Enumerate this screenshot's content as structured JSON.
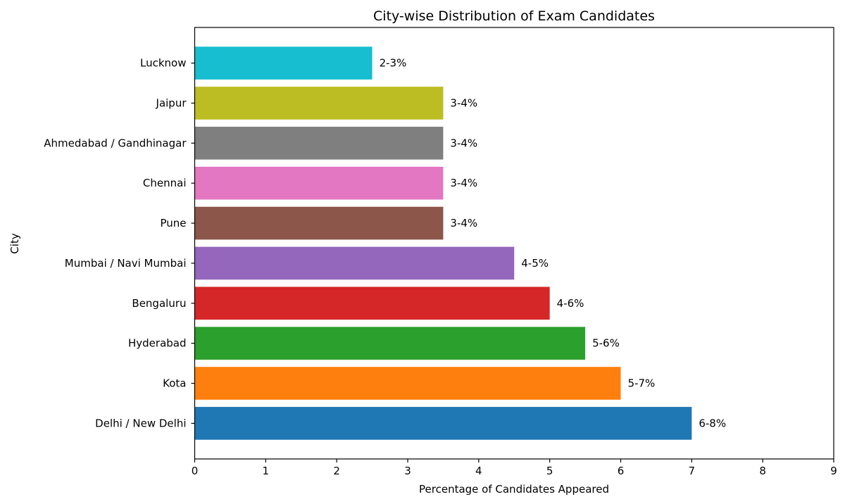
{
  "chart_data": {
    "type": "bar",
    "orientation": "horizontal",
    "title": "City-wise Distribution of Exam Candidates",
    "xlabel": "Percentage of Candidates Appeared",
    "ylabel": "City",
    "xlim": [
      0,
      9
    ],
    "xticks": [
      "0",
      "1",
      "2",
      "3",
      "4",
      "5",
      "6",
      "7",
      "8",
      "9"
    ],
    "grid": false,
    "categories": [
      "Delhi / New Delhi",
      "Kota",
      "Hyderabad",
      "Bengaluru",
      "Mumbai / Navi Mumbai",
      "Pune",
      "Chennai",
      "Ahmedabad / Gandhinagar",
      "Jaipur",
      "Lucknow"
    ],
    "values": [
      7,
      6,
      5.5,
      5,
      4.5,
      3.5,
      3.5,
      3.5,
      3.5,
      2.5
    ],
    "data_labels": [
      "6-8%",
      "5-7%",
      "5-6%",
      "4-6%",
      "4-5%",
      "3-4%",
      "3-4%",
      "3-4%",
      "3-4%",
      "2-3%"
    ],
    "colors": [
      "#1f77b4",
      "#ff7f0e",
      "#2ca02c",
      "#d62728",
      "#9467bd",
      "#8c564b",
      "#e377c2",
      "#7f7f7f",
      "#bcbd22",
      "#17becf"
    ]
  }
}
